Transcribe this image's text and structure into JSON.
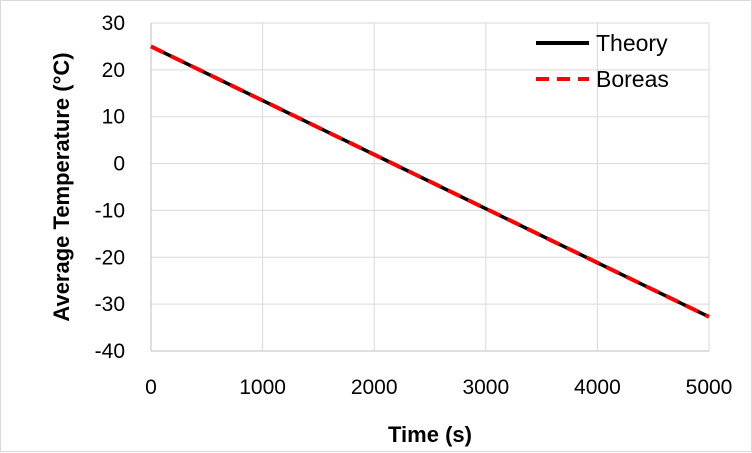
{
  "chart_data": {
    "type": "line",
    "xlabel": "Time (s)",
    "ylabel": "Average Temperature (°C)",
    "xlim": [
      0,
      5000
    ],
    "ylim": [
      -40,
      30
    ],
    "x_ticks": [
      0,
      1000,
      2000,
      3000,
      4000,
      5000
    ],
    "y_ticks": [
      30,
      20,
      10,
      0,
      -10,
      -20,
      -30,
      -40
    ],
    "grid": true,
    "legend_position": "top-right",
    "series": [
      {
        "name": "Theory",
        "x": [
          0,
          5000
        ],
        "y": [
          25,
          -32.7
        ],
        "color": "#000000",
        "style": "solid"
      },
      {
        "name": "Boreas",
        "x": [
          0,
          5000
        ],
        "y": [
          25,
          -32.7
        ],
        "color": "#ff0000",
        "style": "dashed"
      }
    ]
  }
}
